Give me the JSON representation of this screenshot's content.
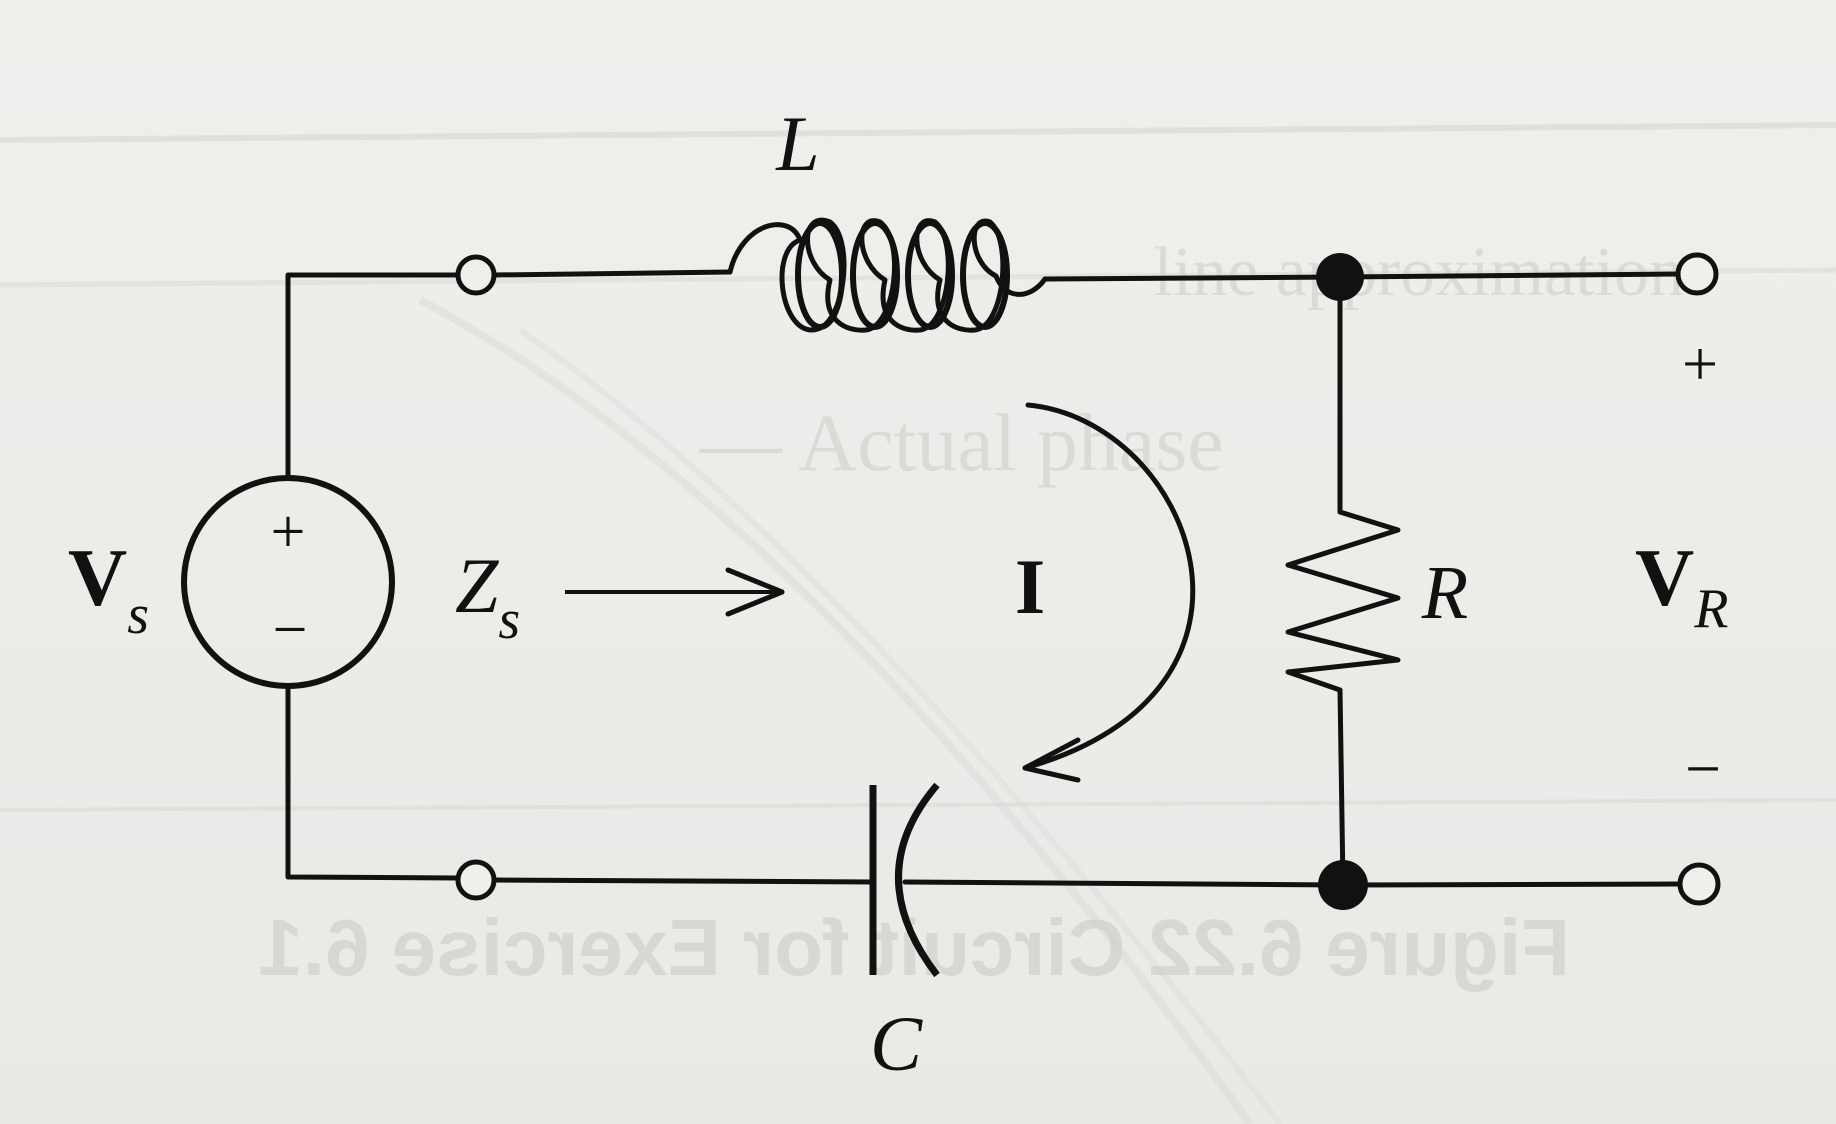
{
  "labels": {
    "inductor": "L",
    "capacitor": "C",
    "resistor": "R",
    "source_main": "V",
    "source_sub": "s",
    "impedance_main": "Z",
    "impedance_sub": "s",
    "current": "I",
    "output_main": "V",
    "output_sub": "R",
    "source_plus": "+",
    "source_minus": "−",
    "output_plus": "+",
    "output_minus": "−"
  },
  "show_through": {
    "caption_mirrored": "Figure 6.22 Circuit for Exercise 6.1",
    "text_fragment_1": "— Actual phase",
    "text_fragment_2": "-line approximation"
  },
  "colors": {
    "ink": "#111111",
    "paper": "#ecece9",
    "show_through": "#c9c9c6"
  }
}
